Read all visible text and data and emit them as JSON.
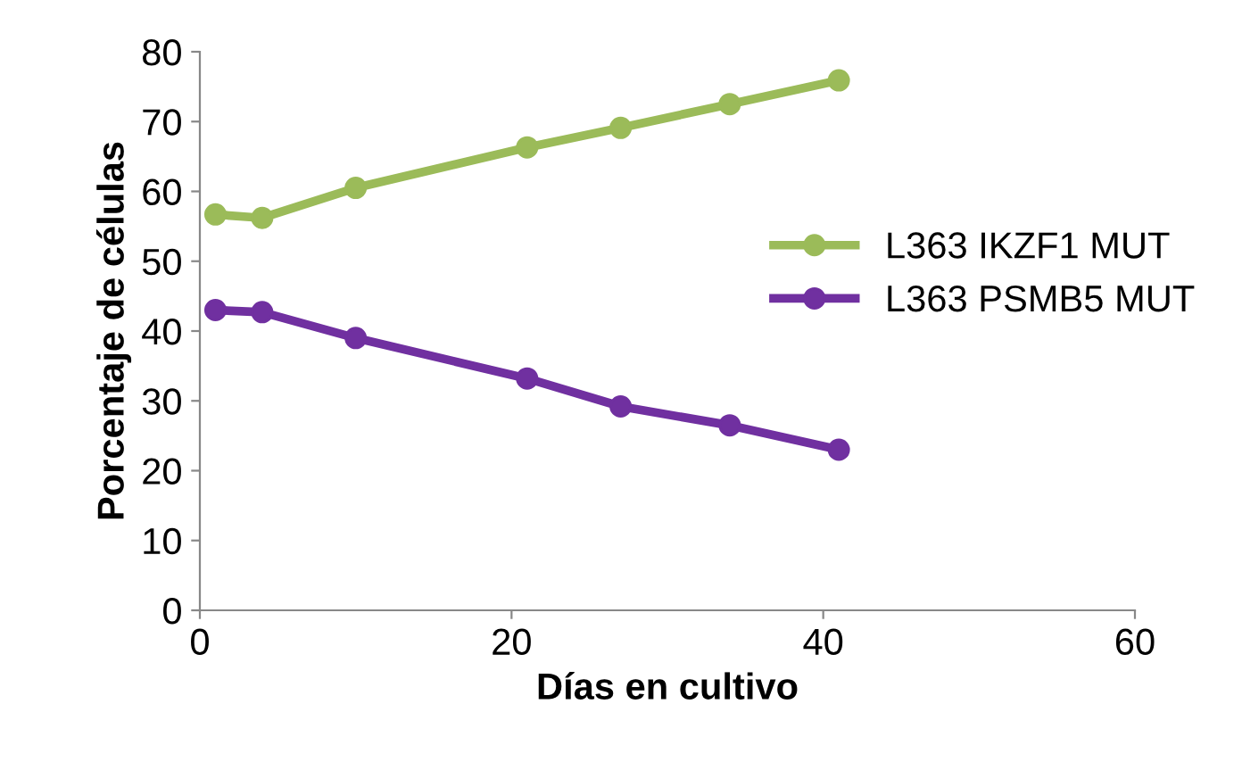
{
  "chart_data": {
    "type": "line",
    "xlabel": "Días en cultivo",
    "ylabel": "Porcentaje de células",
    "x": [
      1,
      4,
      10,
      21,
      27,
      34,
      41
    ],
    "series": [
      {
        "name": "L363 IKZF1 MUT",
        "color": "#9bbb59",
        "values": [
          56.7,
          56.2,
          60.5,
          66.3,
          69.1,
          72.5,
          75.9
        ]
      },
      {
        "name": "L363 PSMB5 MUT",
        "color": "#7030a0",
        "values": [
          43.0,
          42.7,
          39.0,
          33.2,
          29.2,
          26.5,
          23.0
        ]
      }
    ],
    "xlim": [
      0,
      60
    ],
    "xticks": [
      0,
      20,
      40,
      60
    ],
    "ylim": [
      0,
      80
    ],
    "yticks": [
      0,
      10,
      20,
      30,
      40,
      50,
      60,
      70,
      80
    ],
    "grid": false,
    "legend": "right",
    "marker": "circle",
    "line_style": "solid"
  }
}
